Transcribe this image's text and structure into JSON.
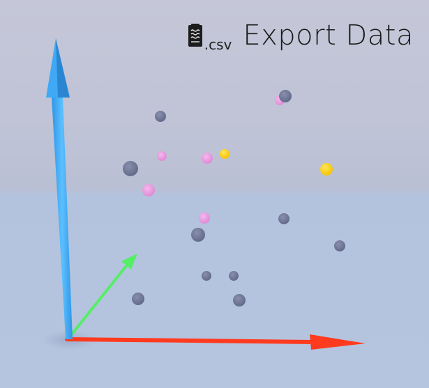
{
  "export": {
    "icon": "document-icon",
    "extension": ".csv",
    "label": "Export Data"
  },
  "scene": {
    "axes": [
      {
        "name": "x-axis",
        "color": "#ff3b1f"
      },
      {
        "name": "y-axis",
        "color": "#3fa9f5"
      },
      {
        "name": "z-axis",
        "color": "#55ee66"
      }
    ],
    "point_groups": [
      {
        "name": "gray",
        "color": "#6e7596"
      },
      {
        "name": "pink",
        "color": "#e79adf"
      },
      {
        "name": "yellow",
        "color": "#ffd21a"
      }
    ]
  }
}
